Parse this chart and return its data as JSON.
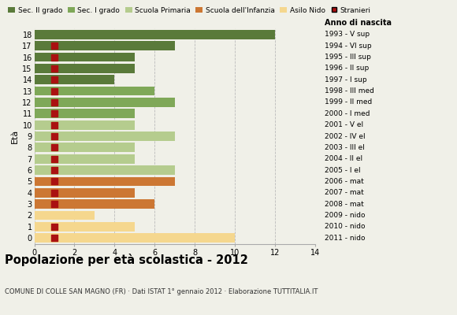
{
  "ages": [
    18,
    17,
    16,
    15,
    14,
    13,
    12,
    11,
    10,
    9,
    8,
    7,
    6,
    5,
    4,
    3,
    2,
    1,
    0
  ],
  "bar_values": [
    12,
    7,
    5,
    5,
    4,
    6,
    7,
    5,
    5,
    7,
    5,
    5,
    7,
    7,
    5,
    6,
    3,
    5,
    10
  ],
  "stranieri_vals": [
    0,
    1,
    1,
    1,
    1,
    1,
    1,
    1,
    1,
    1,
    1,
    1,
    1,
    1,
    1,
    1,
    0,
    1,
    1
  ],
  "anno_di_nascita": [
    "1993 - V sup",
    "1994 - VI sup",
    "1995 - III sup",
    "1996 - II sup",
    "1997 - I sup",
    "1998 - III med",
    "1999 - II med",
    "2000 - I med",
    "2001 - V el",
    "2002 - IV el",
    "2003 - III el",
    "2004 - II el",
    "2005 - I el",
    "2006 - mat",
    "2007 - mat",
    "2008 - mat",
    "2009 - nido",
    "2010 - nido",
    "2011 - nido"
  ],
  "bar_colors": [
    "#5a7a3a",
    "#5a7a3a",
    "#5a7a3a",
    "#5a7a3a",
    "#5a7a3a",
    "#7fa858",
    "#7fa858",
    "#7fa858",
    "#b5cc8e",
    "#b5cc8e",
    "#b5cc8e",
    "#b5cc8e",
    "#b5cc8e",
    "#cc7733",
    "#cc7733",
    "#cc7733",
    "#f5d78e",
    "#f5d78e",
    "#f5d78e"
  ],
  "legend_labels": [
    "Sec. II grado",
    "Sec. I grado",
    "Scuola Primaria",
    "Scuola dell'Infanzia",
    "Asilo Nido",
    "Stranieri"
  ],
  "legend_colors": [
    "#5a7a3a",
    "#7fa858",
    "#b5cc8e",
    "#cc7733",
    "#f5d78e",
    "#aa1111"
  ],
  "stranieri_color": "#aa1111",
  "title": "Popolazione per età scolastica - 2012",
  "subtitle": "COMUNE DI COLLE SAN MAGNO (FR) · Dati ISTAT 1° gennaio 2012 · Elaborazione TUTTITALIA.IT",
  "ylabel_left": "Età",
  "xlabel_right": "Anno di nascita",
  "xlim": [
    0,
    14
  ],
  "xticks": [
    0,
    2,
    4,
    6,
    8,
    10,
    12,
    14
  ],
  "bg_color": "#f0f0e8",
  "bar_height": 0.82,
  "stranieri_size": 28
}
